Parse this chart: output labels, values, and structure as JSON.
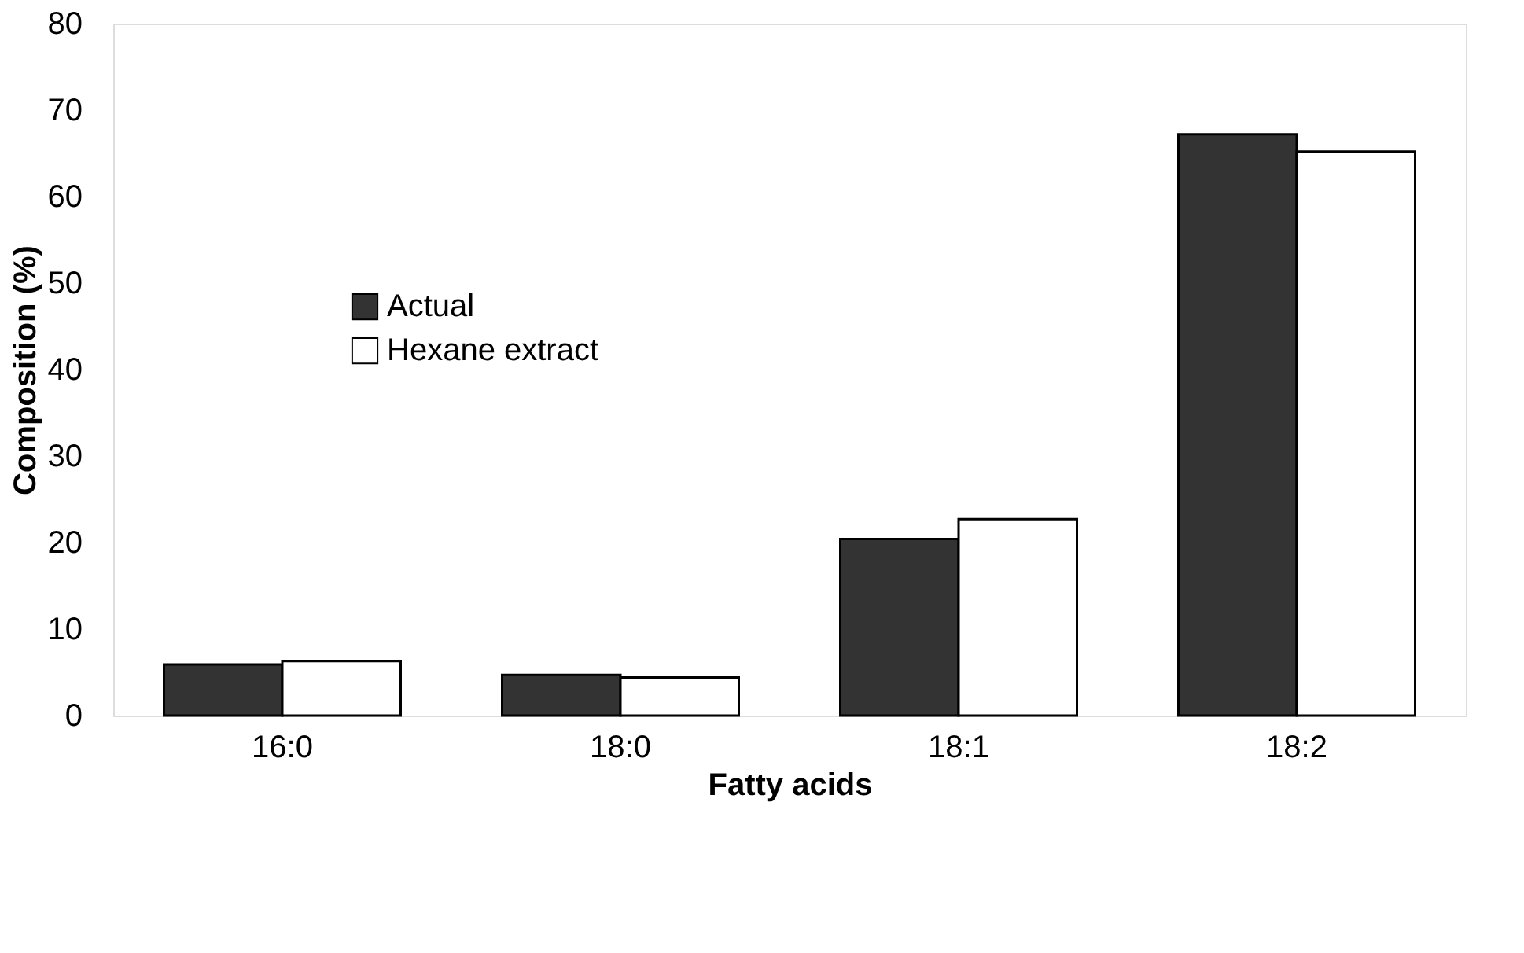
{
  "chart_data": {
    "type": "bar",
    "xlabel": "Fatty acids",
    "ylabel": "Composition (%)",
    "categories": [
      "16:0",
      "18:0",
      "18:1",
      "18:2"
    ],
    "series": [
      {
        "name": "Actual",
        "color": "#333333",
        "values": [
          5.9,
          4.7,
          20.4,
          67.2
        ]
      },
      {
        "name": "Hexane extract",
        "color": "#ffffff",
        "values": [
          6.3,
          4.4,
          22.7,
          65.2
        ]
      }
    ],
    "ylim": [
      0,
      80
    ],
    "yticks": [
      0,
      10,
      20,
      30,
      40,
      50,
      60,
      70,
      80
    ],
    "grid": false,
    "legend": "left"
  }
}
